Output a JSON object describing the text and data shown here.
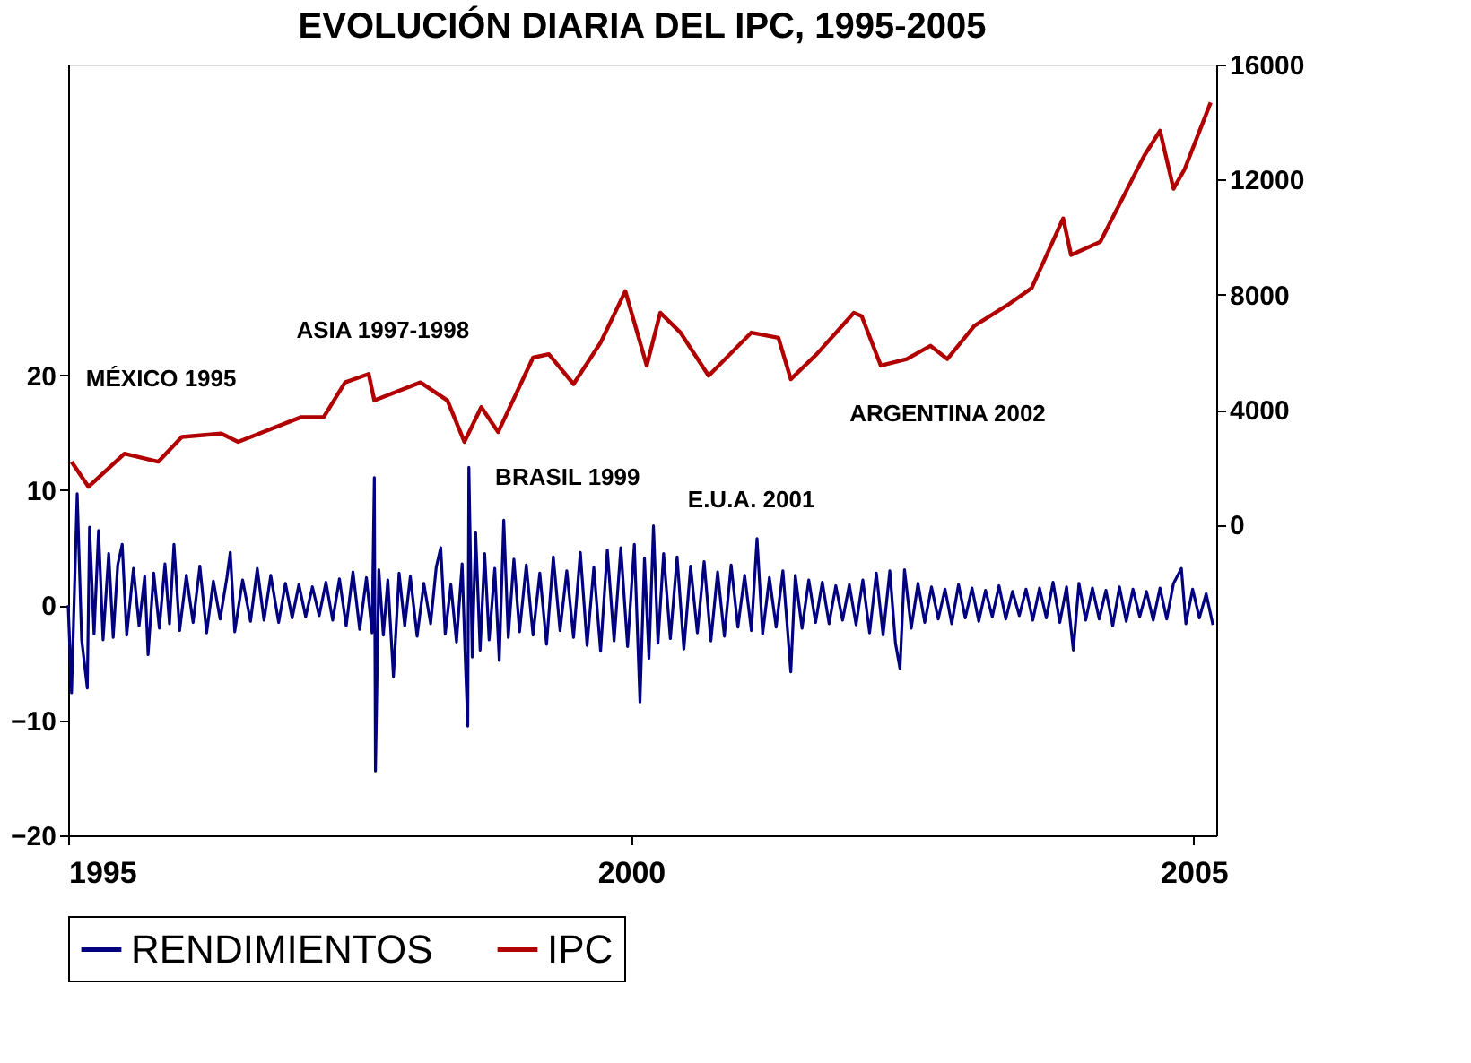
{
  "chart_data": {
    "type": "line",
    "title": "EVOLUCIÓN DIARIA DEL IPC, 1995-2005",
    "xlim": [
      1995.0,
      2005.2
    ],
    "xticks": [
      1995,
      2000,
      2005
    ],
    "ylim": [
      -20,
      47
    ],
    "yticks": [
      -20,
      -10,
      0,
      10,
      20
    ],
    "y2lim": [
      -10800,
      16000
    ],
    "y2ticks": [
      0,
      4000,
      8000,
      12000,
      16000
    ],
    "grid": false,
    "legend": "bottom",
    "line_style": "solid",
    "annotations": [
      "MÉXICO 1995",
      "ASIA 1997-1998",
      "BRASIL 1999",
      "E.U.A. 2001",
      "ARGENTINA 2002"
    ],
    "series": [
      {
        "name": "RENDIMIENTOS",
        "color": "#000080",
        "x": [
          1995.0,
          1995.03,
          1995.08,
          1995.12,
          1995.17,
          1995.19,
          1995.23,
          1995.27,
          1995.31,
          1995.36,
          1995.4,
          1995.44,
          1995.48,
          1995.52,
          1995.58,
          1995.63,
          1995.68,
          1995.71,
          1995.76,
          1995.81,
          1995.86,
          1995.9,
          1995.94,
          1995.99,
          1996.05,
          1996.11,
          1996.17,
          1996.23,
          1996.29,
          1996.35,
          1996.41,
          1996.44,
          1996.48,
          1996.55,
          1996.62,
          1996.68,
          1996.74,
          1996.8,
          1996.87,
          1996.93,
          1996.99,
          1997.05,
          1997.11,
          1997.17,
          1997.23,
          1997.29,
          1997.35,
          1997.41,
          1997.47,
          1997.53,
          1997.59,
          1997.65,
          1997.7,
          1997.72,
          1997.73,
          1997.76,
          1997.8,
          1997.84,
          1997.89,
          1997.94,
          1997.99,
          1998.04,
          1998.1,
          1998.16,
          1998.22,
          1998.27,
          1998.31,
          1998.35,
          1998.4,
          1998.45,
          1998.5,
          1998.53,
          1998.55,
          1998.56,
          1998.59,
          1998.62,
          1998.66,
          1998.7,
          1998.74,
          1998.79,
          1998.83,
          1998.87,
          1998.91,
          1998.96,
          1999.01,
          1999.07,
          1999.13,
          1999.19,
          1999.25,
          1999.31,
          1999.37,
          1999.43,
          1999.49,
          1999.55,
          1999.61,
          1999.67,
          1999.73,
          1999.79,
          1999.85,
          1999.91,
          1999.97,
          2000.03,
          2000.08,
          2000.12,
          2000.16,
          2000.2,
          2000.24,
          2000.29,
          2000.35,
          2000.41,
          2000.47,
          2000.53,
          2000.59,
          2000.65,
          2000.71,
          2000.77,
          2000.83,
          2000.89,
          2000.95,
          2001.01,
          2001.07,
          2001.12,
          2001.17,
          2001.23,
          2001.29,
          2001.35,
          2001.42,
          2001.46,
          2001.52,
          2001.58,
          2001.64,
          2001.7,
          2001.76,
          2001.82,
          2001.88,
          2001.94,
          2002.0,
          2002.06,
          2002.12,
          2002.18,
          2002.24,
          2002.3,
          2002.35,
          2002.39,
          2002.43,
          2002.49,
          2002.55,
          2002.61,
          2002.67,
          2002.73,
          2002.79,
          2002.85,
          2002.91,
          2002.97,
          2003.03,
          2003.09,
          2003.15,
          2003.21,
          2003.27,
          2003.33,
          2003.39,
          2003.45,
          2003.51,
          2003.57,
          2003.63,
          2003.69,
          2003.75,
          2003.81,
          2003.87,
          2003.93,
          2003.98,
          2004.04,
          2004.1,
          2004.16,
          2004.22,
          2004.28,
          2004.34,
          2004.4,
          2004.46,
          2004.52,
          2004.58,
          2004.64,
          2004.7,
          2004.76,
          2004.82,
          2004.89,
          2004.93,
          2004.99,
          2005.05,
          2005.11,
          2005.17
        ],
        "values": [
          0,
          -7.6,
          9.7,
          -3,
          -7.2,
          6.8,
          -2.5,
          6.5,
          -3,
          4.5,
          -2.8,
          3.5,
          5.3,
          -2.6,
          3.2,
          -1.8,
          2.5,
          -4.3,
          2.8,
          -2,
          3.6,
          -1.6,
          5.3,
          -2.2,
          2.6,
          -1.5,
          3.4,
          -2.4,
          2.1,
          -1.2,
          2.4,
          4.6,
          -2.3,
          2.2,
          -1.4,
          3.2,
          -1.3,
          2.6,
          -1.5,
          1.9,
          -1.1,
          1.8,
          -1.0,
          1.6,
          -0.9,
          2.0,
          -1.3,
          2.3,
          -1.8,
          2.9,
          -2.1,
          2.4,
          -2.4,
          11.1,
          -14.4,
          3.1,
          -2.6,
          2.2,
          -6.2,
          2.8,
          -1.8,
          2.5,
          -2.7,
          1.9,
          -1.6,
          3.3,
          5.0,
          -2.5,
          1.8,
          -3.2,
          3.6,
          -5.2,
          -10.5,
          12.0,
          -4.5,
          6.3,
          -3.9,
          4.5,
          -3.0,
          3.2,
          -4.8,
          7.4,
          -2.8,
          4.0,
          -2.3,
          3.5,
          -2.6,
          2.8,
          -3.4,
          4.2,
          -2.2,
          3.0,
          -2.8,
          4.6,
          -3.5,
          3.3,
          -4.0,
          4.8,
          -3.1,
          5.0,
          -3.6,
          5.3,
          -8.4,
          4.1,
          -4.6,
          6.9,
          -3.3,
          4.5,
          -2.9,
          4.2,
          -3.8,
          3.4,
          -2.4,
          3.8,
          -3.1,
          2.9,
          -2.7,
          3.5,
          -1.9,
          2.6,
          -2.2,
          5.8,
          -2.5,
          2.4,
          -1.9,
          3.0,
          -5.8,
          2.6,
          -2.0,
          2.2,
          -1.5,
          2.0,
          -1.6,
          1.7,
          -1.3,
          1.8,
          -1.7,
          2.2,
          -2.4,
          2.8,
          -2.6,
          3.0,
          -3.3,
          -5.5,
          3.1,
          -2.0,
          1.9,
          -1.5,
          1.6,
          -1.2,
          1.4,
          -1.6,
          1.8,
          -1.1,
          1.5,
          -1.4,
          1.3,
          -1.0,
          1.7,
          -1.2,
          1.2,
          -0.9,
          1.4,
          -1.3,
          1.5,
          -1.1,
          2.0,
          -1.5,
          1.6,
          -3.9,
          1.9,
          -1.3,
          1.5,
          -1.2,
          1.3,
          -1.8,
          1.6,
          -1.4,
          1.4,
          -1.0,
          1.2,
          -1.3,
          1.5,
          -1.2,
          1.9,
          3.2,
          -1.6,
          1.4,
          -1.1,
          1.0,
          -1.7
        ]
      },
      {
        "name": "IPC",
        "color": "#b00000",
        "axis": "y2",
        "x": [
          1995.03,
          1995.18,
          1995.5,
          1995.8,
          1996.01,
          1996.36,
          1996.51,
          1997.07,
          1997.27,
          1997.46,
          1997.67,
          1997.72,
          1998.13,
          1998.37,
          1998.52,
          1998.67,
          1998.82,
          1999.13,
          1999.27,
          1999.49,
          1999.73,
          1999.95,
          2000.14,
          2000.26,
          2000.44,
          2000.69,
          2001.07,
          2001.31,
          2001.42,
          2001.65,
          2001.98,
          2002.05,
          2002.22,
          2002.45,
          2002.66,
          2002.81,
          2003.05,
          2003.35,
          2003.56,
          2003.76,
          2003.84,
          2003.91,
          2004.17,
          2004.41,
          2004.56,
          2004.7,
          2004.82,
          2004.92,
          2005.15
        ],
        "values": [
          2190,
          1320,
          2470,
          2190,
          3050,
          3170,
          2880,
          3740,
          3740,
          4950,
          5240,
          4320,
          4950,
          4320,
          2880,
          4090,
          3220,
          5810,
          5930,
          4890,
          6330,
          8120,
          5530,
          7370,
          6680,
          5180,
          6680,
          6500,
          5060,
          5930,
          7370,
          7250,
          5530,
          5760,
          6220,
          5760,
          6910,
          7650,
          8230,
          9960,
          10650,
          9380,
          9840,
          11680,
          12830,
          13700,
          11680,
          12370,
          14680
        ]
      }
    ]
  }
}
